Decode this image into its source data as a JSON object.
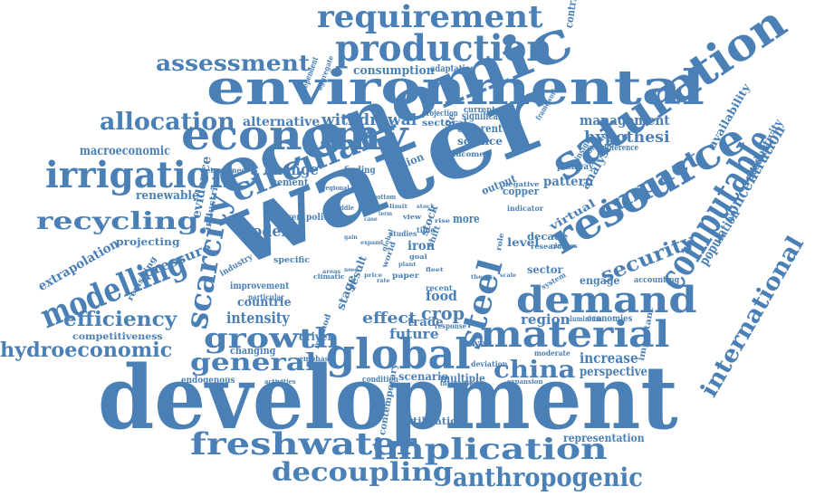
{
  "theme": {
    "word_color": "#4a80b5",
    "background": "#ffffff"
  },
  "words": [
    "development",
    "water",
    "economic",
    "environmental",
    "economy",
    "saturation",
    "resource",
    "computable",
    "global",
    "demand",
    "material",
    "steel",
    "production",
    "requirement",
    "scarcity",
    "circular",
    "irrigation",
    "modelling",
    "freshwater",
    "implication",
    "decoupling",
    "anthropogenic",
    "international",
    "recycling",
    "allocation",
    "assessment",
    "growth",
    "general",
    "china",
    "efficiency",
    "hydroeconomic",
    "impact",
    "security",
    "concentration",
    "management",
    "hypothesi",
    "withdrawal",
    "alternative",
    "model",
    "change",
    "intensity",
    "crop",
    "food",
    "effect",
    "future",
    "trade",
    "region",
    "increase",
    "perspective",
    "population",
    "productivity",
    "availability",
    "extrapolation",
    "pressure",
    "renewable",
    "macroeconomic",
    "projecting",
    "evidence",
    "industrial",
    "consumption",
    "adaptation",
    "contribution",
    "science",
    "different",
    "significant",
    "sectoral",
    "projection",
    "climate",
    "iron",
    "stock",
    "output",
    "copper",
    "pattern",
    "pathway",
    "virtual",
    "analysis",
    "potential",
    "difference",
    "insight",
    "engage",
    "accounting",
    "economies",
    "aluminium",
    "countrie",
    "improvement",
    "changing",
    "emphasis",
    "endogenous",
    "scenario",
    "multiple",
    "condition",
    "intensities",
    "expansion",
    "fertilisation",
    "representation",
    "contemporary",
    "important",
    "cement",
    "finding",
    "determined",
    "competitiveness",
    "revisiting",
    "specific",
    "particular",
    "apparent",
    "policy",
    "industry",
    "method",
    "driven",
    "stage",
    "result",
    "sector",
    "level",
    "decade",
    "moderate",
    "deviation",
    "lower",
    "current",
    "income",
    "framework",
    "option",
    "dependent",
    "aggregate",
    "more",
    "recent",
    "world",
    "paper",
    "indicator",
    "research",
    "negative",
    "role",
    "system",
    "classes",
    "studies",
    "time",
    "response",
    "global",
    "climatic",
    "shift",
    "view",
    "regional",
    "middle",
    "bottom",
    "limit",
    "goal",
    "rise",
    "plant",
    "activities",
    "areas",
    "expand",
    "fleet",
    "price",
    "theory",
    "stock",
    "term",
    "need",
    "scale",
    "gain",
    "case",
    "rate"
  ]
}
